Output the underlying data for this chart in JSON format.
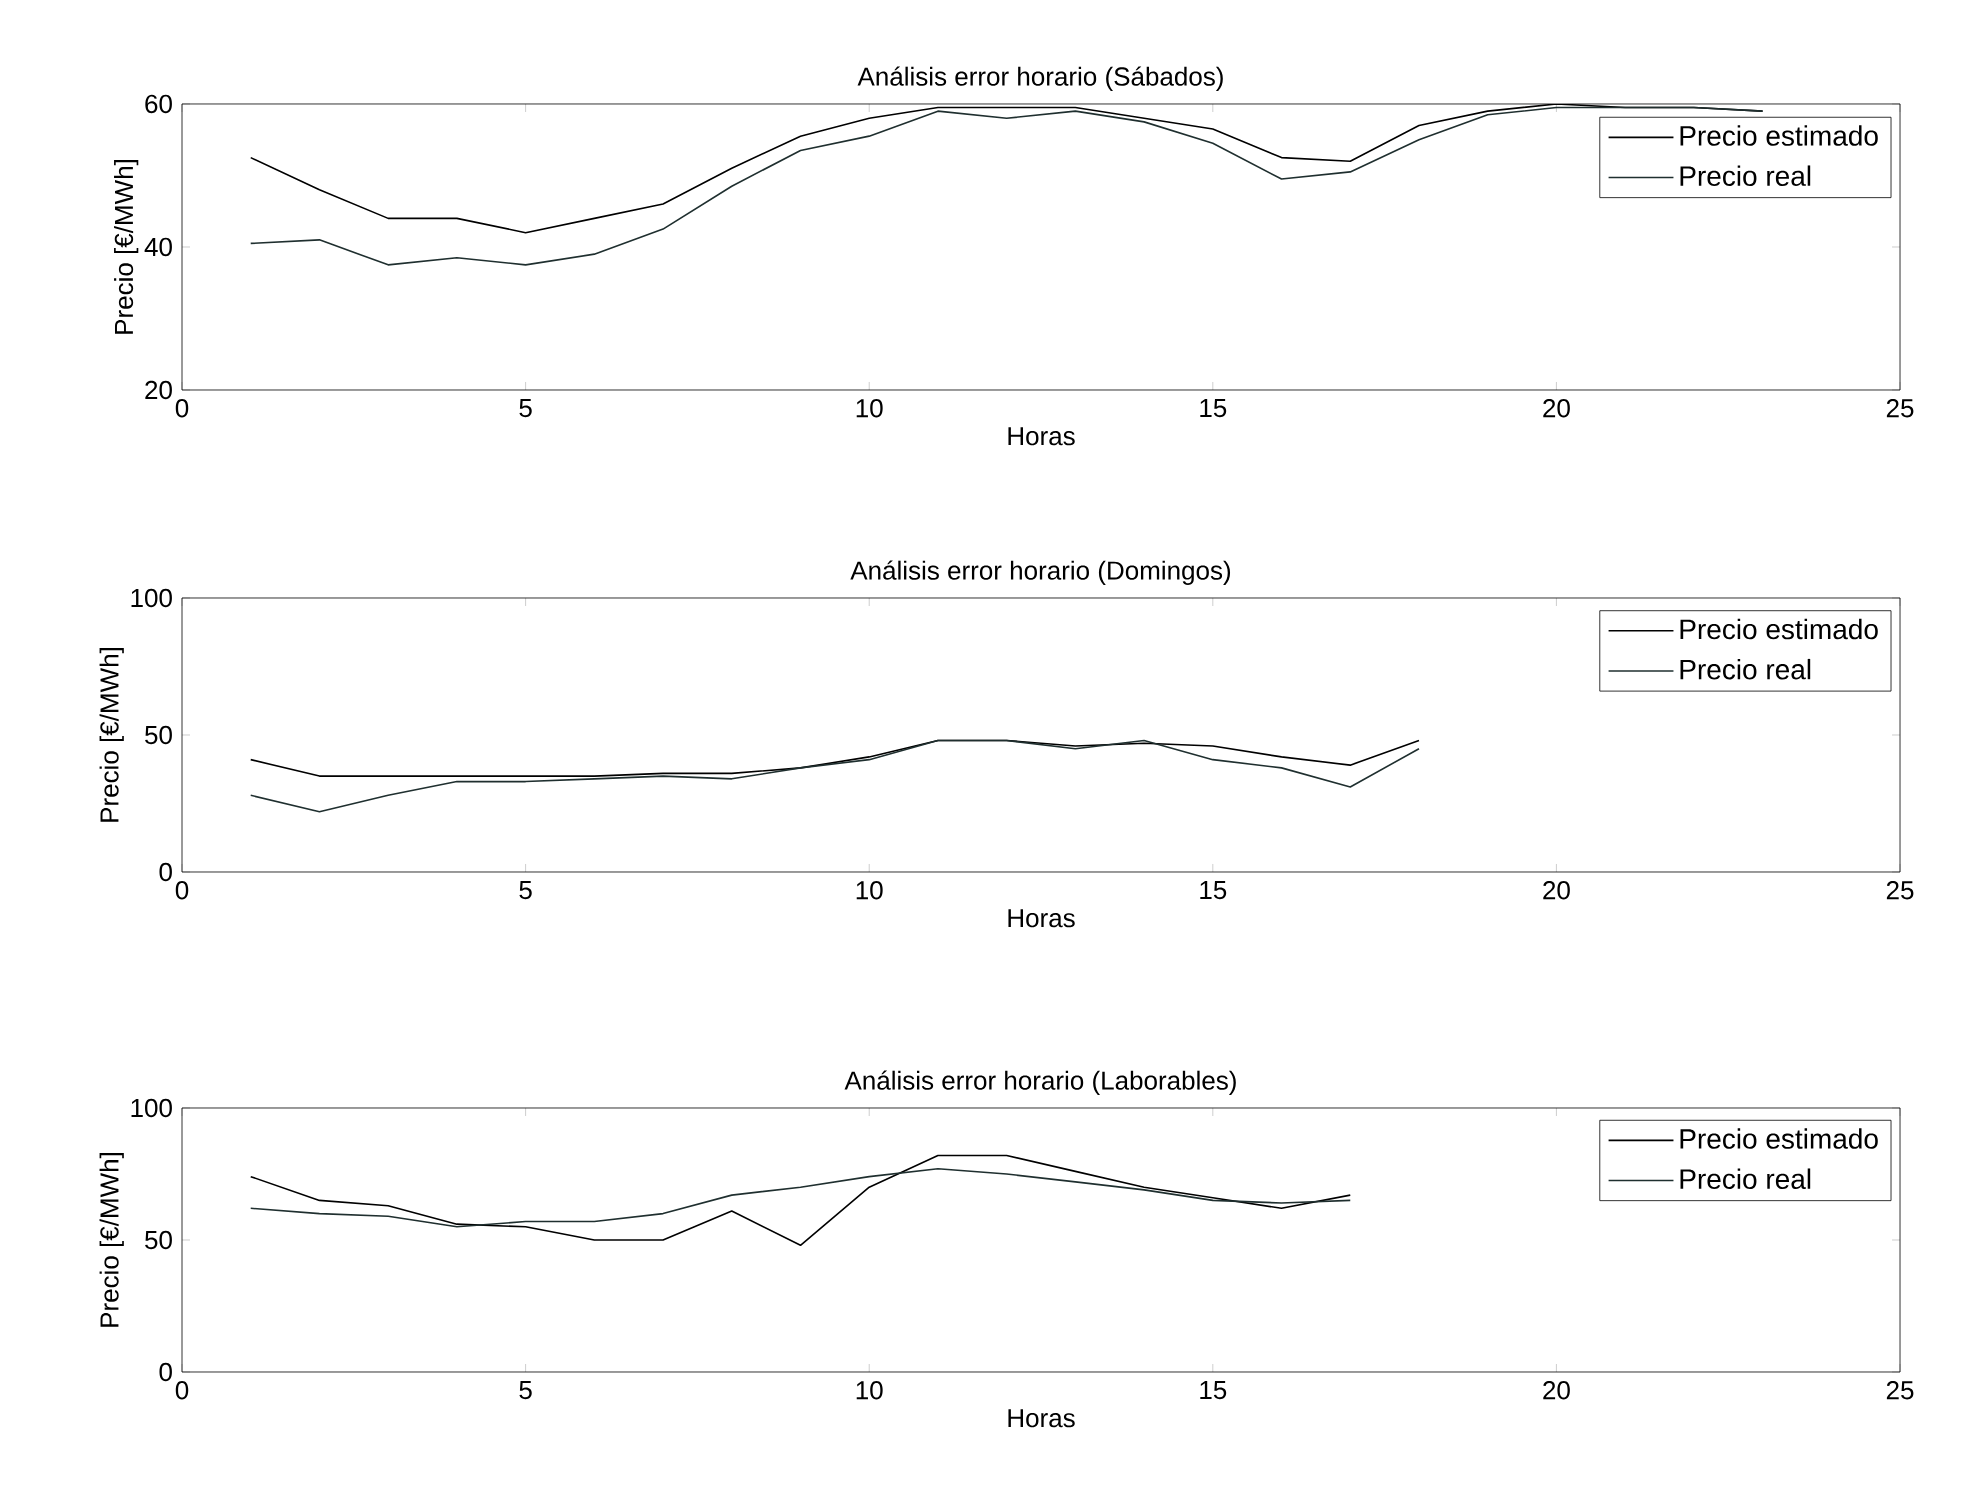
{
  "chart_data": [
    {
      "type": "line",
      "title": "Análisis error horario (Sábados)",
      "xlabel": "Horas",
      "ylabel": "Precio [€/MWh]",
      "x": [
        1,
        2,
        3,
        4,
        5,
        6,
        7,
        8,
        9,
        10,
        11,
        12,
        13,
        14,
        15,
        16,
        17,
        18,
        19,
        20,
        21,
        22,
        23
      ],
      "series": [
        {
          "name": "Precio estimado",
          "color": "#000000",
          "values": [
            52.5,
            48,
            44,
            44,
            42,
            44,
            46,
            51,
            55.5,
            58,
            59.5,
            59.5,
            59.5,
            58,
            56.5,
            52.5,
            52,
            57,
            59,
            60,
            59.5,
            59.5,
            59
          ]
        },
        {
          "name": "Precio real",
          "color": "#1f2f2f",
          "values": [
            40.5,
            41,
            37.5,
            38.5,
            37.5,
            39,
            42.5,
            48.5,
            53.5,
            55.5,
            59,
            58,
            59,
            57.5,
            54.5,
            49.5,
            50.5,
            55,
            58.5,
            59.5,
            59.5,
            59.5,
            59
          ]
        }
      ],
      "xlim": [
        0,
        25
      ],
      "ylim": [
        20,
        60
      ],
      "xticks": [
        0,
        5,
        10,
        15,
        20,
        25
      ],
      "yticks": [
        20,
        40,
        60
      ],
      "legend": "top right",
      "marker": "none",
      "line_style": "solid",
      "grid": false
    },
    {
      "type": "line",
      "title": "Análisis error horario (Domingos)",
      "xlabel": "Horas",
      "ylabel": "Precio [€/MWh]",
      "x": [
        1,
        2,
        3,
        4,
        5,
        6,
        7,
        8,
        9,
        10,
        11,
        12,
        13,
        14,
        15,
        16,
        17,
        18
      ],
      "series": [
        {
          "name": "Precio estimado",
          "color": "#000000",
          "values": [
            41,
            35,
            35,
            35,
            35,
            35,
            36,
            36,
            38,
            42,
            48,
            48,
            46,
            47,
            46,
            42,
            39,
            48
          ]
        },
        {
          "name": "Precio real",
          "color": "#1f2f2f",
          "values": [
            28,
            22,
            28,
            33,
            33,
            34,
            35,
            34,
            38,
            41,
            48,
            48,
            45,
            48,
            41,
            38,
            31,
            45
          ]
        }
      ],
      "xlim": [
        0,
        25
      ],
      "ylim": [
        0,
        100
      ],
      "xticks": [
        0,
        5,
        10,
        15,
        20,
        25
      ],
      "yticks": [
        0,
        50,
        100
      ],
      "legend": "top right",
      "marker": "none",
      "line_style": "solid",
      "grid": false
    },
    {
      "type": "line",
      "title": "Análisis error horario (Laborables)",
      "xlabel": "Horas",
      "ylabel": "Precio [€/MWh]",
      "x": [
        1,
        2,
        3,
        4,
        5,
        6,
        7,
        8,
        9,
        10,
        11,
        12,
        13,
        14,
        15,
        16,
        17
      ],
      "series": [
        {
          "name": "Precio estimado",
          "color": "#000000",
          "values": [
            74,
            65,
            63,
            56,
            55,
            50,
            50,
            61,
            48,
            70,
            82,
            82,
            76,
            70,
            66,
            62,
            67
          ]
        },
        {
          "name": "Precio real",
          "color": "#1f2f2f",
          "values": [
            62,
            60,
            59,
            55,
            57,
            57,
            60,
            67,
            70,
            74,
            77,
            75,
            72,
            69,
            65,
            64,
            65
          ]
        }
      ],
      "xlim": [
        0,
        25
      ],
      "ylim": [
        0,
        100
      ],
      "xticks": [
        0,
        5,
        10,
        15,
        20,
        25
      ],
      "yticks": [
        0,
        50,
        100
      ],
      "legend": "top right",
      "marker": "none",
      "line_style": "solid",
      "grid": false
    }
  ]
}
